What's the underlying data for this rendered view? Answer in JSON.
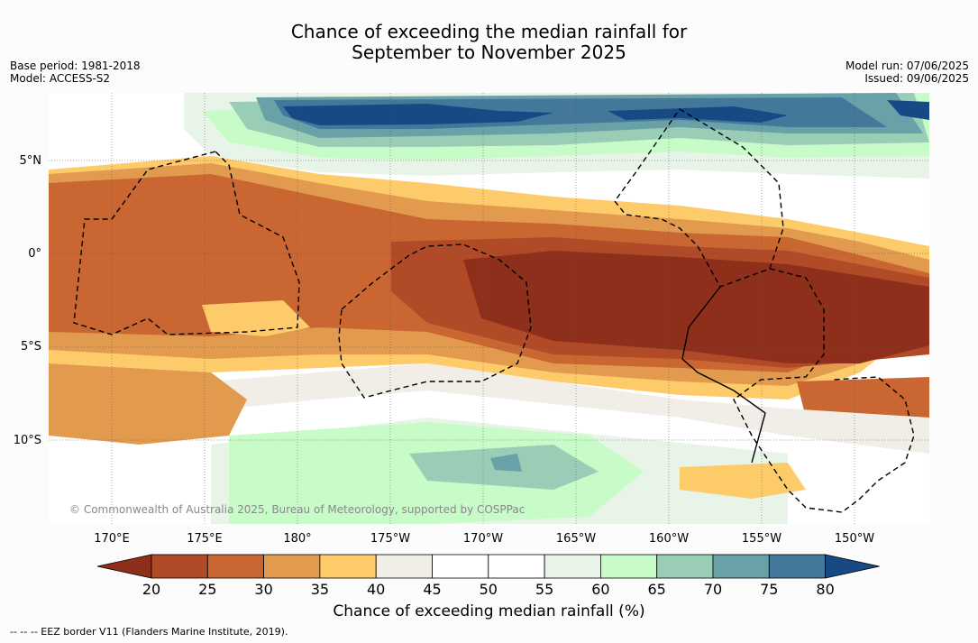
{
  "title": {
    "line1": "Chance of exceeding the median rainfall for",
    "line2": "September to November 2025"
  },
  "meta_left": {
    "base_period": "Base period: 1981-2018",
    "model": "Model: ACCESS-S2"
  },
  "meta_right": {
    "model_run": "Model run: 07/06/2025",
    "issued": "Issued: 09/06/2025"
  },
  "lat_labels": [
    "5°N",
    "0°",
    "5°S",
    "10°S"
  ],
  "lon_labels": [
    "170°E",
    "175°E",
    "180°",
    "175°W",
    "170°W",
    "165°W",
    "160°W",
    "155°W",
    "150°W"
  ],
  "copyright": "© Commonwealth of Australia 2025, Bureau of Meteorology, supported by COSPPac",
  "colorbar": {
    "ticks": [
      "20",
      "25",
      "30",
      "35",
      "40",
      "45",
      "50",
      "55",
      "60",
      "65",
      "70",
      "75",
      "80"
    ],
    "colors": [
      "#8e2f1b",
      "#b04a27",
      "#c96631",
      "#e29a4f",
      "#fecb6a",
      "#f1ede7",
      "#ffffff",
      "#ffffff",
      "#e8f4e8",
      "#c7fcc8",
      "#9acdb6",
      "#6aa0a8",
      "#44789a",
      "#174a85"
    ],
    "label": "Chance of exceeding median rainfall (%)"
  },
  "footnote": "-- -- -- EEZ border V11 (Flanders Marine Institute, 2019)."
}
